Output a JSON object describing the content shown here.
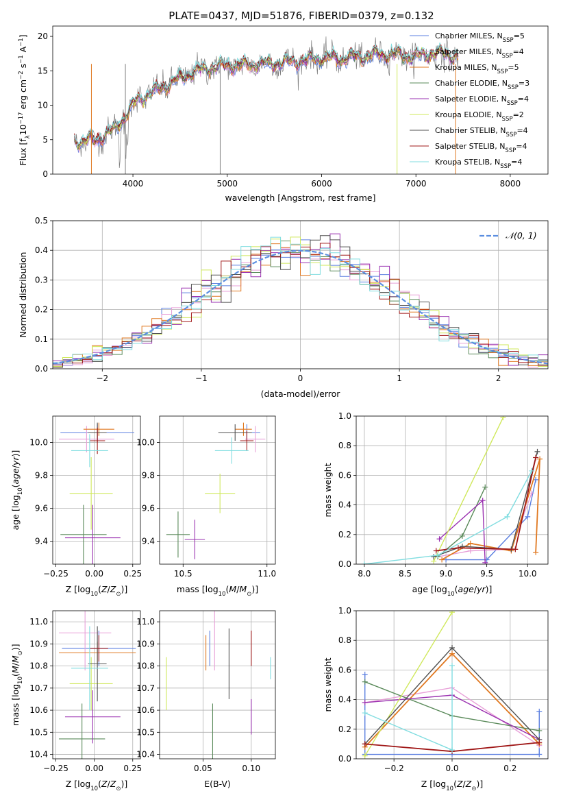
{
  "figure_title": "PLATE=0437, MJD=51876, FIBERID=0379, z=0.132",
  "colors": {
    "Chabrier MILES": "#5b7fe0",
    "Salpeter MILES": "#e8a0d8",
    "Kroupa MILES": "#e07820",
    "Chabrier ELODIE": "#5a8a5a",
    "Salpeter ELODIE": "#9a30b0",
    "Kroupa ELODIE": "#cfe85a",
    "Chabrier STELIB": "#505050",
    "Salpeter STELIB": "#a01818",
    "Kroupa STELIB": "#80dde0"
  },
  "chart_data": [
    {
      "id": "spectrum",
      "type": "line",
      "xlabel": "wavelength [Angstrom, rest frame]",
      "ylabel": "Flux [f",
      "ylabel_parts": [
        "Flux [f",
        "λ",
        "10",
        "−17",
        " erg cm",
        "−2",
        " s",
        "−1",
        " A",
        "−1",
        "]"
      ],
      "xlim": [
        3150,
        8400
      ],
      "ylim": [
        0,
        21.5
      ],
      "xticks": [
        4000,
        5000,
        6000,
        7000,
        8000
      ],
      "yticks": [
        0,
        5,
        10,
        15,
        20
      ],
      "continuum": {
        "x": [
          3400,
          3600,
          3800,
          3950,
          4050,
          4200,
          4400,
          4600,
          4800,
          5000,
          5200,
          5400,
          5600,
          5800,
          6000,
          6200,
          6400,
          6600,
          6800,
          7000,
          7200,
          7400
        ],
        "y": [
          4.8,
          4.9,
          6.4,
          9.0,
          10.8,
          11.8,
          13.2,
          14.6,
          15.4,
          15.8,
          15.8,
          16.0,
          16.2,
          16.5,
          16.9,
          16.8,
          17.0,
          17.4,
          17.3,
          17.0,
          17.6,
          17.2
        ]
      },
      "legend": [
        {
          "label": "Chabrier MILES, N",
          "sub": "SSP",
          "eq": "=5"
        },
        {
          "label": "Salpeter MILES, N",
          "sub": "SSP",
          "eq": "=4"
        },
        {
          "label": "Kroupa MILES, N",
          "sub": "SSP",
          "eq": "=5"
        },
        {
          "label": "Chabrier ELODIE, N",
          "sub": "SSP",
          "eq": "=3"
        },
        {
          "label": "Salpeter ELODIE, N",
          "sub": "SSP",
          "eq": "=4"
        },
        {
          "label": "Kroupa ELODIE, N",
          "sub": "SSP",
          "eq": "=2"
        },
        {
          "label": "Chabrier STELIB, N",
          "sub": "SSP",
          "eq": "=4"
        },
        {
          "label": "Salpeter STELIB, N",
          "sub": "SSP",
          "eq": "=4"
        },
        {
          "label": "Kroupa STELIB, N",
          "sub": "SSP",
          "eq": "=4"
        }
      ],
      "grid": false,
      "legend_position": "right"
    },
    {
      "id": "residuals",
      "type": "line",
      "xlabel": "(data-model)/error",
      "ylabel": "Normed distribution",
      "xlim": [
        -2.5,
        2.5
      ],
      "ylim": [
        0,
        0.5
      ],
      "xticks": [
        -2,
        -1,
        0,
        1,
        2
      ],
      "yticks": [
        0.0,
        0.1,
        0.2,
        0.3,
        0.4,
        0.5
      ],
      "bin_width": 0.1,
      "reference_label": "𝒩(0, 1)",
      "reference_color": "#5b8ee0",
      "grid": true,
      "legend_position": "top-right"
    },
    {
      "id": "age_vs_Z",
      "type": "scatter",
      "xlabel": "Z [log",
      "ylabel": "age  [log",
      "xlim": [
        -0.27,
        0.3
      ],
      "ylim": [
        9.26,
        10.16
      ],
      "xticks": [
        -0.25,
        0.0,
        0.25
      ],
      "xtick_labels": [
        "−0.25",
        "0.00",
        "0.25"
      ],
      "yticks": [
        9.4,
        9.6,
        9.8,
        10.0
      ],
      "yticklabels": [
        "9.4",
        "9.6",
        "9.8",
        "10.0"
      ],
      "points": [
        {
          "model": "Chabrier MILES",
          "x": 0.02,
          "xerr": 0.24,
          "y": 10.06,
          "yerr": 0.05
        },
        {
          "model": "Salpeter MILES",
          "x": -0.05,
          "xerr": 0.18,
          "y": 10.02,
          "yerr": 0.08
        },
        {
          "model": "Kroupa MILES",
          "x": 0.03,
          "xerr": 0.1,
          "y": 10.08,
          "yerr": 0.04
        },
        {
          "model": "Chabrier ELODIE",
          "x": -0.07,
          "xerr": 0.15,
          "y": 9.44,
          "yerr": 0.18
        },
        {
          "model": "Salpeter ELODIE",
          "x": -0.01,
          "xerr": 0.18,
          "y": 9.42,
          "yerr": 0.2
        },
        {
          "model": "Kroupa ELODIE",
          "x": -0.02,
          "xerr": 0.14,
          "y": 9.69,
          "yerr": 0.22
        },
        {
          "model": "Chabrier STELIB",
          "x": 0.02,
          "xerr": 0.06,
          "y": 10.06,
          "yerr": 0.06
        },
        {
          "model": "Salpeter STELIB",
          "x": 0.02,
          "xerr": 0.05,
          "y": 10.01,
          "yerr": 0.08
        },
        {
          "model": "Kroupa STELIB",
          "x": -0.03,
          "xerr": 0.12,
          "y": 9.95,
          "yerr": 0.1
        }
      ],
      "grid": true
    },
    {
      "id": "age_vs_mass",
      "type": "scatter",
      "xlabel": "mass [log",
      "xlim": [
        10.36,
        11.05
      ],
      "ylim": [
        9.26,
        10.16
      ],
      "xticks": [
        10.5,
        11.0
      ],
      "xtick_labels": [
        "10.5",
        "11.0"
      ],
      "yticks": [
        9.4,
        9.6,
        9.8,
        10.0
      ],
      "yticklabels": [
        "9.4",
        "9.6",
        "9.8",
        "10.0"
      ],
      "points": [
        {
          "model": "Chabrier MILES",
          "x": 10.88,
          "xerr": 0.08,
          "y": 10.06,
          "yerr": 0.05
        },
        {
          "model": "Salpeter MILES",
          "x": 10.93,
          "xerr": 0.06,
          "y": 10.02,
          "yerr": 0.08
        },
        {
          "model": "Kroupa MILES",
          "x": 10.86,
          "xerr": 0.05,
          "y": 10.08,
          "yerr": 0.04
        },
        {
          "model": "Chabrier ELODIE",
          "x": 10.47,
          "xerr": 0.07,
          "y": 9.44,
          "yerr": 0.14
        },
        {
          "model": "Salpeter ELODIE",
          "x": 10.57,
          "xerr": 0.06,
          "y": 9.41,
          "yerr": 0.12
        },
        {
          "model": "Kroupa ELODIE",
          "x": 10.72,
          "xerr": 0.09,
          "y": 9.69,
          "yerr": 0.12
        },
        {
          "model": "Chabrier STELIB",
          "x": 10.81,
          "xerr": 0.1,
          "y": 10.06,
          "yerr": 0.05
        },
        {
          "model": "Salpeter STELIB",
          "x": 10.88,
          "xerr": 0.04,
          "y": 10.01,
          "yerr": 0.06
        },
        {
          "model": "Kroupa STELIB",
          "x": 10.79,
          "xerr": 0.1,
          "y": 9.95,
          "yerr": 0.08
        }
      ],
      "grid": true
    },
    {
      "id": "massweight_vs_age",
      "type": "line",
      "xlabel": "age  [log",
      "ylabel": "mass weight",
      "xlim": [
        7.9,
        10.25
      ],
      "ylim": [
        0,
        1.0
      ],
      "xticks": [
        8.0,
        8.5,
        9.0,
        9.5,
        10.0
      ],
      "xtick_labels": [
        "8.0",
        "8.5",
        "9.0",
        "9.5",
        "10.0"
      ],
      "yticks": [
        0.0,
        0.2,
        0.4,
        0.6,
        0.8,
        1.0
      ],
      "yticklabels": [
        "0.0",
        "0.2",
        "0.4",
        "0.6",
        "0.8",
        "1.0"
      ],
      "series": [
        {
          "model": "Chabrier MILES",
          "x": [
            9.0,
            9.5,
            10.0,
            10.1
          ],
          "y": [
            0.03,
            0.03,
            0.32,
            0.57
          ]
        },
        {
          "model": "Salpeter MILES",
          "x": [
            8.9,
            9.3,
            9.8,
            10.05
          ],
          "y": [
            0.05,
            0.09,
            0.1,
            0.48
          ]
        },
        {
          "model": "Kroupa MILES",
          "x": [
            8.95,
            9.3,
            9.8,
            10.15,
            10.1
          ],
          "y": [
            0.03,
            0.14,
            0.09,
            0.71,
            0.08
          ]
        },
        {
          "model": "Chabrier ELODIE",
          "x": [
            8.9,
            9.2,
            9.48
          ],
          "y": [
            0.05,
            0.19,
            0.52
          ]
        },
        {
          "model": "Salpeter ELODIE",
          "x": [
            8.92,
            9.45,
            9.48
          ],
          "y": [
            0.17,
            0.43,
            0.01
          ]
        },
        {
          "model": "Kroupa ELODIE",
          "x": [
            8.85,
            9.7
          ],
          "y": [
            0.02,
            0.99
          ]
        },
        {
          "model": "Chabrier STELIB",
          "x": [
            8.85,
            9.2,
            9.8,
            10.12
          ],
          "y": [
            0.05,
            0.12,
            0.1,
            0.76
          ]
        },
        {
          "model": "Salpeter STELIB",
          "x": [
            8.88,
            9.15,
            9.85,
            10.1
          ],
          "y": [
            0.09,
            0.11,
            0.1,
            0.72
          ]
        },
        {
          "model": "Kroupa STELIB",
          "x": [
            8.0,
            8.9,
            9.75,
            10.05
          ],
          "y": [
            0.0,
            0.06,
            0.32,
            0.63
          ]
        }
      ],
      "grid": true
    },
    {
      "id": "mass_vs_Z",
      "type": "scatter",
      "xlabel": "Z [log",
      "ylabel": "mass [log",
      "xlim": [
        -0.27,
        0.3
      ],
      "ylim": [
        10.38,
        11.05
      ],
      "xticks": [
        -0.25,
        0.0,
        0.25
      ],
      "xtick_labels": [
        "−0.25",
        "0.00",
        "0.25"
      ],
      "yticks": [
        10.4,
        10.5,
        10.6,
        10.7,
        10.8,
        10.9,
        11.0
      ],
      "yticklabels": [
        "10.4",
        "10.5",
        "10.6",
        "10.7",
        "10.8",
        "10.9",
        "11.0"
      ],
      "points": [
        {
          "model": "Chabrier MILES",
          "x": 0.03,
          "xerr": 0.24,
          "y": 10.88,
          "yerr": 0.08
        },
        {
          "model": "Salpeter MILES",
          "x": -0.06,
          "xerr": 0.17,
          "y": 10.95,
          "yerr": 0.17
        },
        {
          "model": "Kroupa MILES",
          "x": 0.02,
          "xerr": 0.25,
          "y": 10.86,
          "yerr": 0.05
        },
        {
          "model": "Chabrier ELODIE",
          "x": -0.08,
          "xerr": 0.15,
          "y": 10.47,
          "yerr": 0.16
        },
        {
          "model": "Salpeter ELODIE",
          "x": -0.01,
          "xerr": 0.18,
          "y": 10.57,
          "yerr": 0.12
        },
        {
          "model": "Kroupa ELODIE",
          "x": -0.02,
          "xerr": 0.14,
          "y": 10.72,
          "yerr": 0.12
        },
        {
          "model": "Chabrier STELIB",
          "x": 0.02,
          "xerr": 0.06,
          "y": 10.81,
          "yerr": 0.17
        },
        {
          "model": "Salpeter STELIB",
          "x": 0.03,
          "xerr": 0.06,
          "y": 10.88,
          "yerr": 0.06
        },
        {
          "model": "Kroupa STELIB",
          "x": -0.03,
          "xerr": 0.12,
          "y": 10.79,
          "yerr": 0.19
        }
      ],
      "grid": true
    },
    {
      "id": "mass_vs_EBV",
      "type": "scatter",
      "xlabel": "E(B-V)",
      "xlim": [
        0.005,
        0.125
      ],
      "ylim": [
        10.38,
        11.05
      ],
      "xticks": [
        0.05,
        0.1
      ],
      "xtick_labels": [
        "0.05",
        "0.10"
      ],
      "yticks": [
        10.4,
        10.5,
        10.6,
        10.7,
        10.8,
        10.9,
        11.0
      ],
      "yticklabels": [
        "10.4",
        "10.5",
        "10.6",
        "10.7",
        "10.8",
        "10.9",
        "11.0"
      ],
      "points": [
        {
          "model": "Chabrier MILES",
          "x": 0.057,
          "xerr": 0,
          "y": 10.88,
          "yerr": 0.08
        },
        {
          "model": "Salpeter MILES",
          "x": 0.062,
          "xerr": 0,
          "y": 10.95,
          "yerr": 0.17
        },
        {
          "model": "Kroupa MILES",
          "x": 0.053,
          "xerr": 0,
          "y": 10.86,
          "yerr": 0.08
        },
        {
          "model": "Chabrier ELODIE",
          "x": 0.06,
          "xerr": 0,
          "y": 10.47,
          "yerr": 0.16
        },
        {
          "model": "Salpeter ELODIE",
          "x": 0.1,
          "xerr": 0,
          "y": 10.57,
          "yerr": 0.08
        },
        {
          "model": "Kroupa ELODIE",
          "x": 0.012,
          "xerr": 0,
          "y": 10.72,
          "yerr": 0.12
        },
        {
          "model": "Chabrier STELIB",
          "x": 0.077,
          "xerr": 0,
          "y": 10.81,
          "yerr": 0.16
        },
        {
          "model": "Salpeter STELIB",
          "x": 0.1,
          "xerr": 0,
          "y": 10.88,
          "yerr": 0.08
        },
        {
          "model": "Kroupa STELIB",
          "x": 0.12,
          "xerr": 0,
          "y": 10.79,
          "yerr": 0.05
        }
      ],
      "grid": true
    },
    {
      "id": "massweight_vs_Z",
      "type": "line",
      "xlabel": "Z [log",
      "ylabel": "mass weight",
      "xlim": [
        -0.33,
        0.33
      ],
      "ylim": [
        0,
        1.0
      ],
      "xticks": [
        -0.2,
        0.0,
        0.2
      ],
      "xtick_labels": [
        "−0.2",
        "0.0",
        "0.2"
      ],
      "yticks": [
        0.0,
        0.2,
        0.4,
        0.6,
        0.8,
        1.0
      ],
      "yticklabels": [
        "0.0",
        "0.2",
        "0.4",
        "0.6",
        "0.8",
        "1.0"
      ],
      "series": [
        {
          "model": "Chabrier MILES",
          "x": [
            -0.3,
            -0.3,
            0.0,
            0.3,
            0.3
          ],
          "y": [
            0.57,
            0.03,
            0.03,
            0.03,
            0.32
          ]
        },
        {
          "model": "Salpeter MILES",
          "x": [
            -0.3,
            0.0,
            0.3
          ],
          "y": [
            0.38,
            0.48,
            0.09
          ]
        },
        {
          "model": "Kroupa MILES",
          "x": [
            -0.3,
            0.0,
            0.3
          ],
          "y": [
            0.08,
            0.71,
            0.1
          ]
        },
        {
          "model": "Chabrier ELODIE",
          "x": [
            -0.3,
            0.0,
            0.3
          ],
          "y": [
            0.52,
            0.29,
            0.19
          ]
        },
        {
          "model": "Salpeter ELODIE",
          "x": [
            -0.3,
            0.0,
            0.3
          ],
          "y": [
            0.38,
            0.43,
            0.13
          ]
        },
        {
          "model": "Kroupa ELODIE",
          "x": [
            -0.3,
            0.0
          ],
          "y": [
            0.02,
            0.99
          ]
        },
        {
          "model": "Chabrier STELIB",
          "x": [
            -0.3,
            0.0,
            0.3
          ],
          "y": [
            0.1,
            0.75,
            0.13
          ]
        },
        {
          "model": "Salpeter STELIB",
          "x": [
            -0.3,
            0.0,
            0.3
          ],
          "y": [
            0.1,
            0.05,
            0.11
          ]
        },
        {
          "model": "Kroupa STELIB",
          "x": [
            -0.3,
            0.0,
            0.0
          ],
          "y": [
            0.31,
            0.06,
            0.63
          ]
        }
      ],
      "grid": true
    }
  ]
}
